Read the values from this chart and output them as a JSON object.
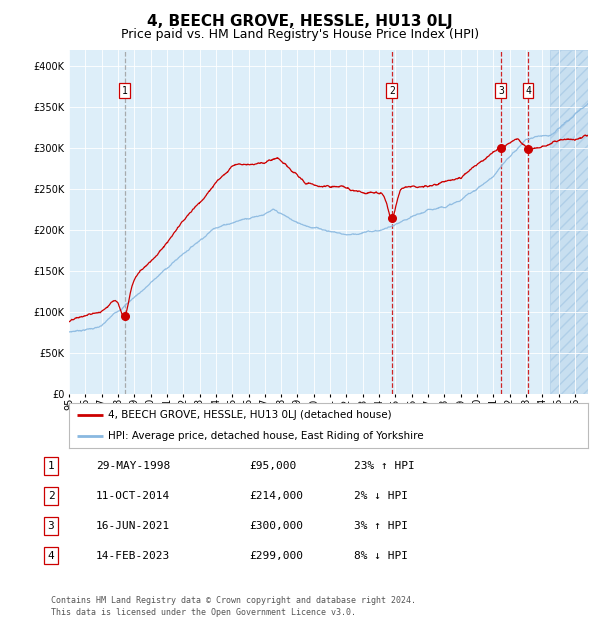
{
  "title": "4, BEECH GROVE, HESSLE, HU13 0LJ",
  "subtitle": "Price paid vs. HM Land Registry's House Price Index (HPI)",
  "title_fontsize": 11,
  "subtitle_fontsize": 9,
  "background_color": "#ddeef9",
  "hpi_color": "#89b8e0",
  "price_color": "#cc0000",
  "ylim": [
    0,
    420000
  ],
  "yticks": [
    0,
    50000,
    100000,
    150000,
    200000,
    250000,
    300000,
    350000,
    400000
  ],
  "xlim_start": 1995.0,
  "xlim_end": 2026.8,
  "xticks": [
    1995,
    1996,
    1997,
    1998,
    1999,
    2000,
    2001,
    2002,
    2003,
    2004,
    2005,
    2006,
    2007,
    2008,
    2009,
    2010,
    2011,
    2012,
    2013,
    2014,
    2015,
    2016,
    2017,
    2018,
    2019,
    2020,
    2021,
    2022,
    2023,
    2024,
    2025,
    2026
  ],
  "sale_dates": [
    1998.41,
    2014.78,
    2021.46,
    2023.12
  ],
  "sale_prices": [
    95000,
    214000,
    300000,
    299000
  ],
  "sale_labels": [
    "1",
    "2",
    "3",
    "4"
  ],
  "legend_line1": "4, BEECH GROVE, HESSLE, HU13 0LJ (detached house)",
  "legend_line2": "HPI: Average price, detached house, East Riding of Yorkshire",
  "table_rows": [
    [
      "1",
      "29-MAY-1998",
      "£95,000",
      "23% ↑ HPI"
    ],
    [
      "2",
      "11-OCT-2014",
      "£214,000",
      "2% ↓ HPI"
    ],
    [
      "3",
      "16-JUN-2021",
      "£300,000",
      "3% ↑ HPI"
    ],
    [
      "4",
      "14-FEB-2023",
      "£299,000",
      "8% ↓ HPI"
    ]
  ],
  "footer": "Contains HM Land Registry data © Crown copyright and database right 2024.\nThis data is licensed under the Open Government Licence v3.0.",
  "vline_color_dashed": "#cc0000",
  "vline1_color": "#888888",
  "hatch_start": 2024.5
}
